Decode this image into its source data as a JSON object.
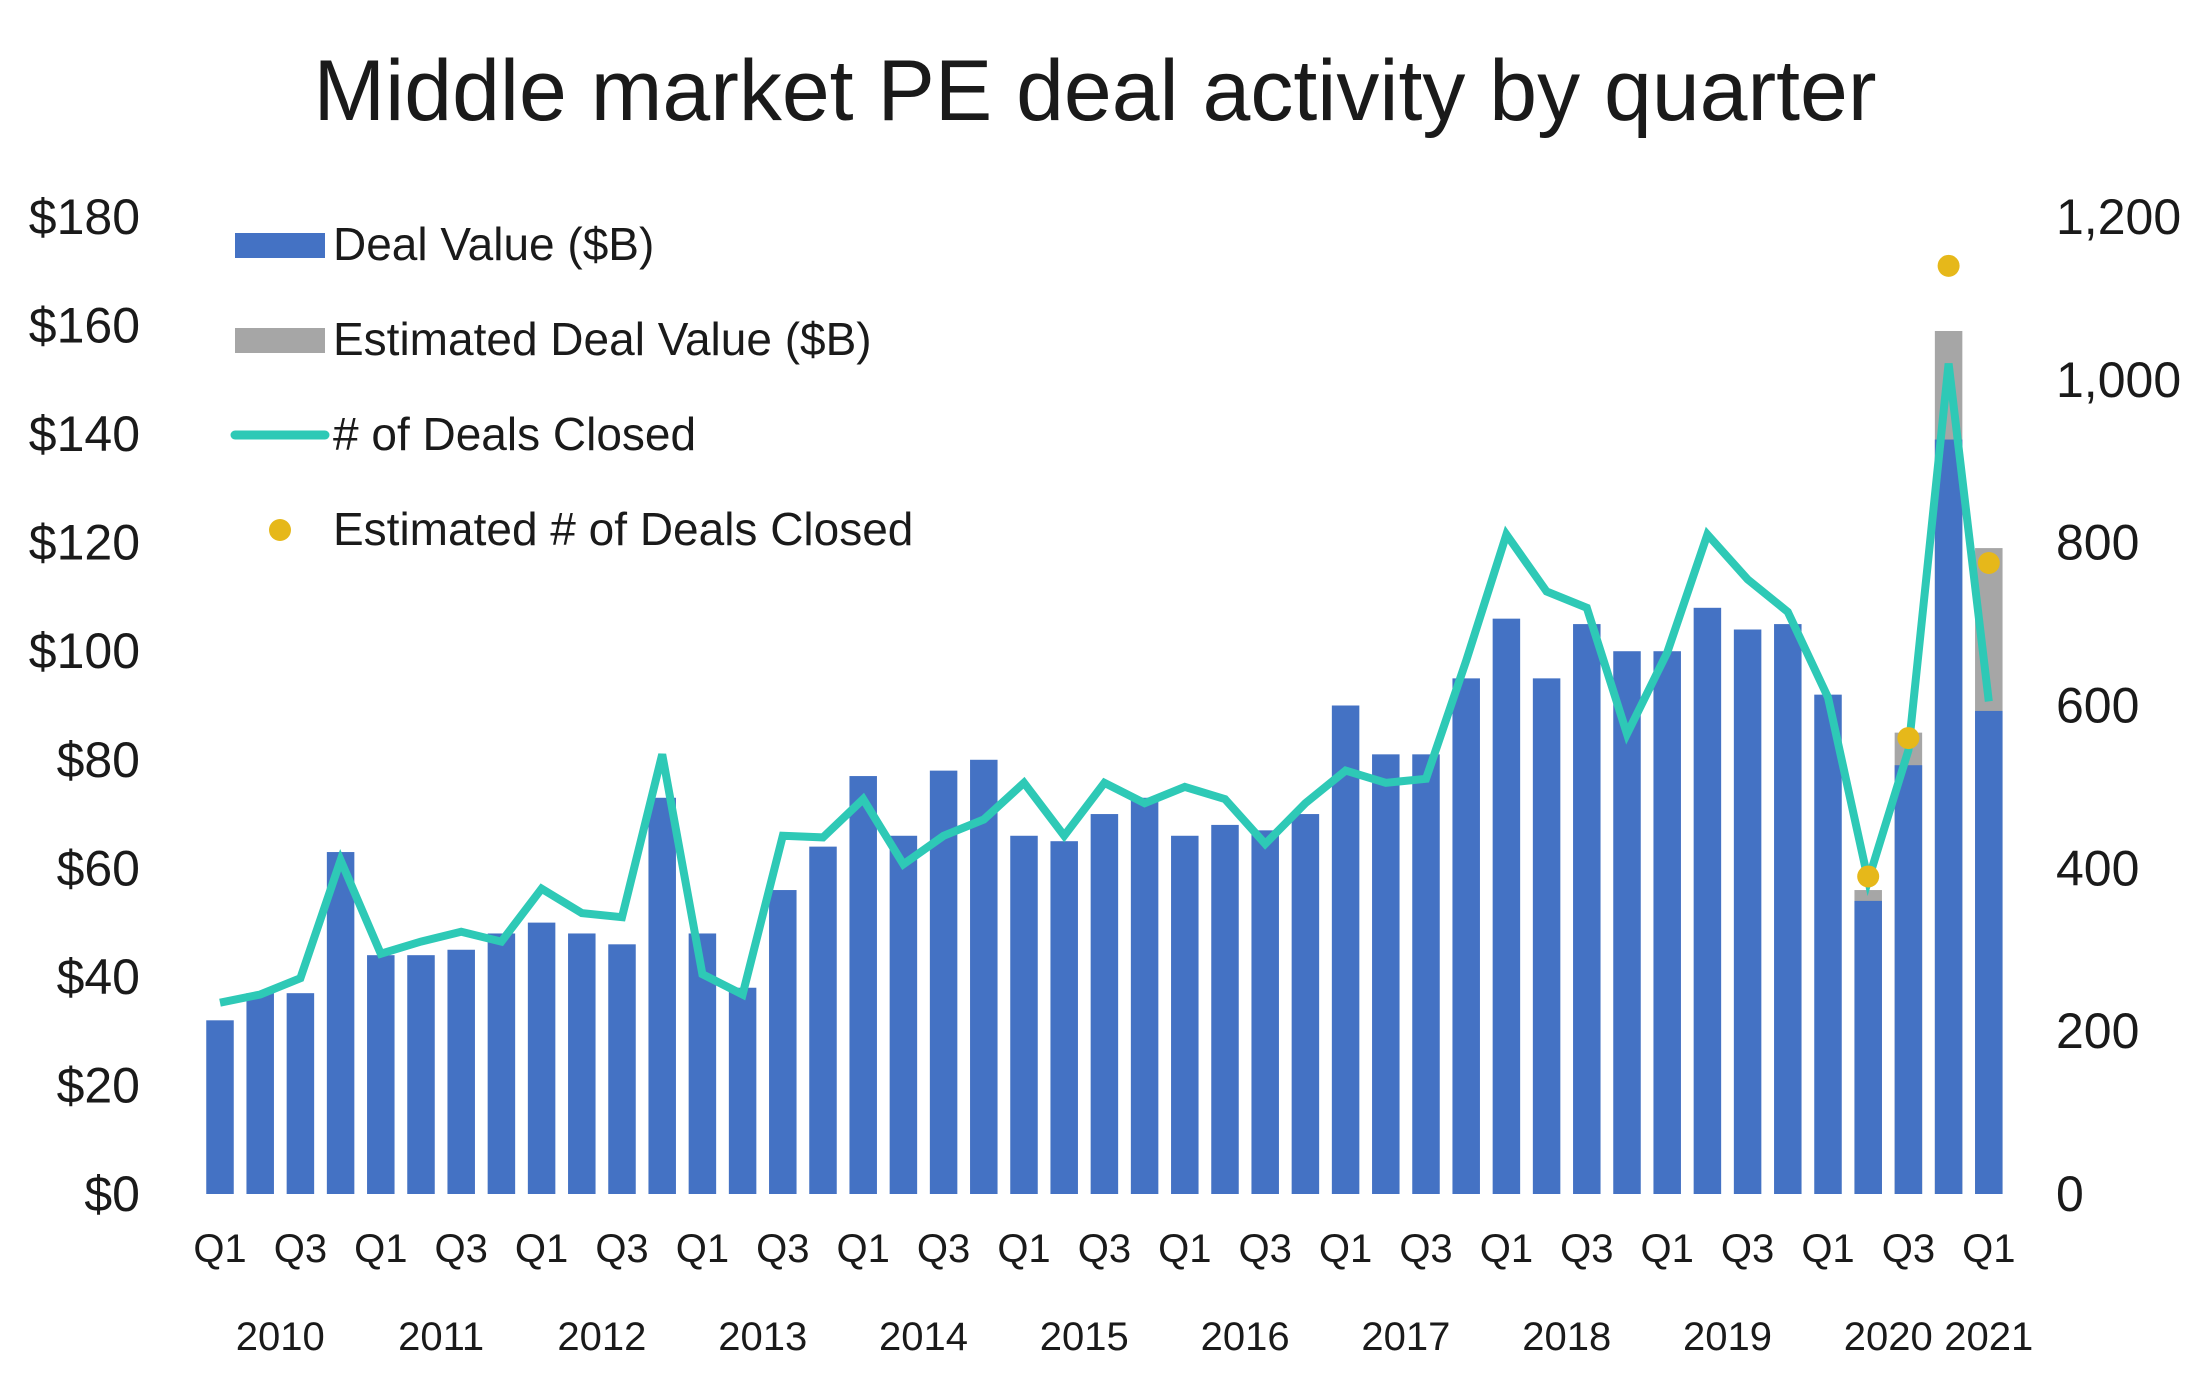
{
  "chart_data": {
    "type": "bar",
    "title": "Middle market PE deal activity by quarter",
    "left_axis": {
      "ylim": [
        0,
        180
      ],
      "ticks": [
        0,
        20,
        40,
        60,
        80,
        100,
        120,
        140,
        160,
        180
      ],
      "tick_labels": [
        "$0",
        "$20",
        "$40",
        "$60",
        "$80",
        "$100",
        "$120",
        "$140",
        "$160",
        "$180"
      ]
    },
    "right_axis": {
      "ylim": [
        0,
        1200
      ],
      "ticks": [
        0,
        200,
        400,
        600,
        800,
        1000,
        1200
      ],
      "tick_labels": [
        "0",
        "200",
        "400",
        "600",
        "800",
        "1,000",
        "1,200"
      ]
    },
    "quarter_tick_labels": [
      "Q1",
      "Q3",
      "Q1",
      "Q3",
      "Q1",
      "Q3",
      "Q1",
      "Q3",
      "Q1",
      "Q3",
      "Q1",
      "Q3",
      "Q1",
      "Q3",
      "Q1",
      "Q3",
      "Q1",
      "Q3",
      "Q1",
      "Q3",
      "Q1",
      "Q3",
      "Q1"
    ],
    "year_labels": [
      "2010",
      "2011",
      "2012",
      "2013",
      "2014",
      "2015",
      "2016",
      "2017",
      "2018",
      "2019",
      "2020",
      "2021"
    ],
    "categories": [
      "2010 Q1",
      "2010 Q2",
      "2010 Q3",
      "2010 Q4",
      "2011 Q1",
      "2011 Q2",
      "2011 Q3",
      "2011 Q4",
      "2012 Q1",
      "2012 Q2",
      "2012 Q3",
      "2012 Q4",
      "2013 Q1",
      "2013 Q2",
      "2013 Q3",
      "2013 Q4",
      "2014 Q1",
      "2014 Q2",
      "2014 Q3",
      "2014 Q4",
      "2015 Q1",
      "2015 Q2",
      "2015 Q3",
      "2015 Q4",
      "2016 Q1",
      "2016 Q2",
      "2016 Q3",
      "2016 Q4",
      "2017 Q1",
      "2017 Q2",
      "2017 Q3",
      "2017 Q4",
      "2018 Q1",
      "2018 Q2",
      "2018 Q3",
      "2018 Q4",
      "2019 Q1",
      "2019 Q2",
      "2019 Q3",
      "2019 Q4",
      "2020 Q1",
      "2020 Q2",
      "2020 Q3",
      "2020 Q4",
      "2021 Q1"
    ],
    "series": [
      {
        "name": "Deal Value ($B)",
        "type": "bar",
        "axis": "left",
        "color": "#4472c4",
        "values": [
          32,
          37,
          37,
          63,
          44,
          44,
          45,
          48,
          50,
          48,
          46,
          73,
          48,
          38,
          56,
          64,
          77,
          66,
          78,
          80,
          66,
          65,
          70,
          73,
          66,
          68,
          67,
          70,
          90,
          81,
          81,
          95,
          106,
          95,
          105,
          100,
          100,
          108,
          104,
          105,
          92,
          54,
          79,
          139,
          89
        ]
      },
      {
        "name": "Estimated Deal Value ($B)",
        "type": "bar",
        "axis": "left",
        "color": "#a6a6a6",
        "values": [
          null,
          null,
          null,
          null,
          null,
          null,
          null,
          null,
          null,
          null,
          null,
          null,
          null,
          null,
          null,
          null,
          null,
          null,
          null,
          null,
          null,
          null,
          null,
          null,
          null,
          null,
          null,
          null,
          null,
          null,
          null,
          null,
          null,
          null,
          null,
          null,
          null,
          null,
          null,
          null,
          null,
          56,
          85,
          159,
          119
        ]
      },
      {
        "name": "# of Deals Closed",
        "type": "line",
        "axis": "right",
        "color": "#2ec9b6",
        "values": [
          235,
          245,
          265,
          410,
          295,
          310,
          322,
          310,
          375,
          345,
          340,
          540,
          270,
          245,
          440,
          438,
          485,
          405,
          440,
          460,
          505,
          440,
          505,
          480,
          500,
          485,
          430,
          480,
          520,
          505,
          510,
          655,
          810,
          740,
          720,
          565,
          665,
          810,
          755,
          715,
          610,
          385,
          545,
          1020,
          605
        ]
      },
      {
        "name": "Estimated # of Deals Closed",
        "type": "scatter",
        "axis": "right",
        "color": "#e6b81a",
        "values": [
          null,
          null,
          null,
          null,
          null,
          null,
          null,
          null,
          null,
          null,
          null,
          null,
          null,
          null,
          null,
          null,
          null,
          null,
          null,
          null,
          null,
          null,
          null,
          null,
          null,
          null,
          null,
          null,
          null,
          null,
          null,
          null,
          null,
          null,
          null,
          null,
          null,
          null,
          null,
          null,
          null,
          390,
          560,
          1140,
          775
        ]
      }
    ],
    "legend_placement": "top-left",
    "grid": false
  }
}
